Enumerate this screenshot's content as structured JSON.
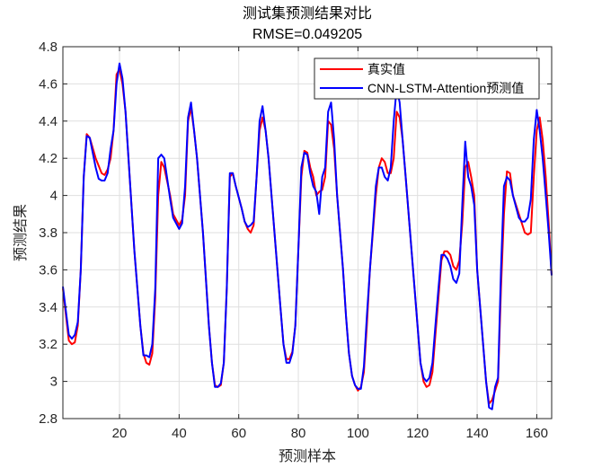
{
  "chart_data": {
    "type": "line",
    "title": "测试集预测结果对比",
    "subtitle": "RMSE=0.049205",
    "xlabel": "预测样本",
    "ylabel": "预测结果",
    "xlim": [
      1,
      165
    ],
    "ylim": [
      2.8,
      4.8
    ],
    "xticks": [
      20,
      40,
      60,
      80,
      100,
      120,
      140,
      160
    ],
    "yticks": [
      2.8,
      3,
      3.2,
      3.4,
      3.6,
      3.8,
      4,
      4.2,
      4.4,
      4.6,
      4.8
    ],
    "ytick_labels": [
      "2.8",
      "3",
      "3.2",
      "3.4",
      "3.6",
      "3.8",
      "4",
      "4.2",
      "4.4",
      "4.6",
      "4.8"
    ],
    "grid": true,
    "legend_position": "top-right",
    "series": [
      {
        "name": "真实值",
        "color": "#ff0000",
        "points": [
          [
            1,
            3.5
          ],
          [
            3,
            3.22
          ],
          [
            4,
            3.2
          ],
          [
            5,
            3.21
          ],
          [
            6,
            3.3
          ],
          [
            7,
            3.6
          ],
          [
            8,
            4.1
          ],
          [
            9,
            4.33
          ],
          [
            10,
            4.31
          ],
          [
            12,
            4.2
          ],
          [
            14,
            4.12
          ],
          [
            15,
            4.11
          ],
          [
            16,
            4.14
          ],
          [
            17,
            4.2
          ],
          [
            18,
            4.35
          ],
          [
            19,
            4.65
          ],
          [
            20,
            4.68
          ],
          [
            21,
            4.6
          ],
          [
            22,
            4.45
          ],
          [
            23,
            4.2
          ],
          [
            25,
            3.7
          ],
          [
            27,
            3.3
          ],
          [
            28,
            3.15
          ],
          [
            29,
            3.1
          ],
          [
            30,
            3.09
          ],
          [
            31,
            3.15
          ],
          [
            32,
            3.45
          ],
          [
            33,
            4.0
          ],
          [
            34,
            4.18
          ],
          [
            35,
            4.15
          ],
          [
            37,
            4.0
          ],
          [
            38,
            3.9
          ],
          [
            40,
            3.84
          ],
          [
            41,
            3.87
          ],
          [
            42,
            4.0
          ],
          [
            43,
            4.4
          ],
          [
            44,
            4.47
          ],
          [
            45,
            4.35
          ],
          [
            46,
            4.2
          ],
          [
            48,
            3.8
          ],
          [
            50,
            3.3
          ],
          [
            51,
            3.1
          ],
          [
            52,
            2.98
          ],
          [
            53,
            2.97
          ],
          [
            54,
            2.98
          ],
          [
            55,
            3.1
          ],
          [
            56,
            3.5
          ],
          [
            57,
            4.1
          ],
          [
            58,
            4.12
          ],
          [
            59,
            4.05
          ],
          [
            61,
            3.93
          ],
          [
            62,
            3.86
          ],
          [
            63,
            3.82
          ],
          [
            64,
            3.8
          ],
          [
            65,
            3.84
          ],
          [
            66,
            4.1
          ],
          [
            67,
            4.35
          ],
          [
            68,
            4.42
          ],
          [
            69,
            4.35
          ],
          [
            70,
            4.2
          ],
          [
            72,
            3.8
          ],
          [
            74,
            3.4
          ],
          [
            75,
            3.2
          ],
          [
            76,
            3.12
          ],
          [
            77,
            3.12
          ],
          [
            78,
            3.16
          ],
          [
            79,
            3.3
          ],
          [
            80,
            3.7
          ],
          [
            81,
            4.1
          ],
          [
            82,
            4.24
          ],
          [
            83,
            4.23
          ],
          [
            84,
            4.15
          ],
          [
            85,
            4.1
          ],
          [
            86,
            4.0
          ],
          [
            87,
            4.02
          ],
          [
            88,
            4.03
          ],
          [
            89,
            4.1
          ],
          [
            90,
            4.4
          ],
          [
            91,
            4.38
          ],
          [
            92,
            4.25
          ],
          [
            93,
            4.0
          ],
          [
            95,
            3.6
          ],
          [
            96,
            3.35
          ],
          [
            97,
            3.15
          ],
          [
            98,
            3.03
          ],
          [
            99,
            2.98
          ],
          [
            100,
            2.95
          ],
          [
            101,
            2.97
          ],
          [
            102,
            3.05
          ],
          [
            103,
            3.3
          ],
          [
            104,
            3.6
          ],
          [
            105,
            3.8
          ],
          [
            106,
            4.0
          ],
          [
            107,
            4.15
          ],
          [
            108,
            4.2
          ],
          [
            109,
            4.18
          ],
          [
            110,
            4.12
          ],
          [
            111,
            4.12
          ],
          [
            112,
            4.2
          ],
          [
            113,
            4.45
          ],
          [
            114,
            4.42
          ],
          [
            115,
            4.3
          ],
          [
            116,
            4.1
          ],
          [
            118,
            3.7
          ],
          [
            120,
            3.3
          ],
          [
            121,
            3.1
          ],
          [
            122,
            3.0
          ],
          [
            123,
            2.97
          ],
          [
            124,
            2.98
          ],
          [
            125,
            3.05
          ],
          [
            126,
            3.25
          ],
          [
            127,
            3.45
          ],
          [
            128,
            3.65
          ],
          [
            129,
            3.7
          ],
          [
            130,
            3.7
          ],
          [
            131,
            3.68
          ],
          [
            132,
            3.62
          ],
          [
            133,
            3.6
          ],
          [
            134,
            3.65
          ],
          [
            135,
            3.85
          ],
          [
            136,
            4.15
          ],
          [
            137,
            4.18
          ],
          [
            138,
            4.1
          ],
          [
            139,
            4.0
          ],
          [
            140,
            3.6
          ],
          [
            142,
            3.2
          ],
          [
            143,
            3.0
          ],
          [
            144,
            2.88
          ],
          [
            145,
            2.9
          ],
          [
            146,
            2.95
          ],
          [
            147,
            3.0
          ],
          [
            148,
            3.5
          ],
          [
            149,
            3.9
          ],
          [
            150,
            4.13
          ],
          [
            151,
            4.12
          ],
          [
            152,
            4.0
          ],
          [
            154,
            3.9
          ],
          [
            155,
            3.85
          ],
          [
            156,
            3.8
          ],
          [
            157,
            3.79
          ],
          [
            158,
            3.8
          ],
          [
            159,
            4.1
          ],
          [
            160,
            4.35
          ],
          [
            161,
            4.42
          ],
          [
            162,
            4.3
          ],
          [
            163,
            4.1
          ],
          [
            164,
            3.85
          ],
          [
            165,
            3.57
          ]
        ]
      },
      {
        "name": "CNN-LSTM-Attention预测值",
        "color": "#0000ff",
        "points": [
          [
            1,
            3.51
          ],
          [
            3,
            3.25
          ],
          [
            4,
            3.23
          ],
          [
            5,
            3.25
          ],
          [
            6,
            3.32
          ],
          [
            7,
            3.6
          ],
          [
            8,
            4.1
          ],
          [
            9,
            4.32
          ],
          [
            10,
            4.31
          ],
          [
            12,
            4.15
          ],
          [
            13,
            4.09
          ],
          [
            14,
            4.08
          ],
          [
            15,
            4.08
          ],
          [
            16,
            4.12
          ],
          [
            17,
            4.25
          ],
          [
            18,
            4.35
          ],
          [
            19,
            4.6
          ],
          [
            20,
            4.71
          ],
          [
            21,
            4.63
          ],
          [
            22,
            4.45
          ],
          [
            23,
            4.2
          ],
          [
            25,
            3.7
          ],
          [
            27,
            3.3
          ],
          [
            28,
            3.14
          ],
          [
            29,
            3.14
          ],
          [
            30,
            3.13
          ],
          [
            31,
            3.2
          ],
          [
            32,
            3.5
          ],
          [
            33,
            4.2
          ],
          [
            34,
            4.22
          ],
          [
            35,
            4.2
          ],
          [
            37,
            3.98
          ],
          [
            38,
            3.88
          ],
          [
            40,
            3.82
          ],
          [
            41,
            3.85
          ],
          [
            42,
            4.05
          ],
          [
            43,
            4.42
          ],
          [
            44,
            4.5
          ],
          [
            45,
            4.35
          ],
          [
            46,
            4.2
          ],
          [
            48,
            3.8
          ],
          [
            50,
            3.3
          ],
          [
            51,
            3.1
          ],
          [
            52,
            2.97
          ],
          [
            53,
            2.97
          ],
          [
            54,
            2.99
          ],
          [
            55,
            3.1
          ],
          [
            56,
            3.5
          ],
          [
            57,
            4.12
          ],
          [
            58,
            4.12
          ],
          [
            59,
            4.05
          ],
          [
            61,
            3.93
          ],
          [
            62,
            3.86
          ],
          [
            63,
            3.83
          ],
          [
            64,
            3.84
          ],
          [
            65,
            3.86
          ],
          [
            66,
            4.1
          ],
          [
            67,
            4.4
          ],
          [
            68,
            4.48
          ],
          [
            69,
            4.35
          ],
          [
            70,
            4.2
          ],
          [
            72,
            3.8
          ],
          [
            74,
            3.4
          ],
          [
            75,
            3.2
          ],
          [
            76,
            3.1
          ],
          [
            77,
            3.1
          ],
          [
            78,
            3.15
          ],
          [
            79,
            3.3
          ],
          [
            80,
            3.7
          ],
          [
            81,
            4.15
          ],
          [
            82,
            4.23
          ],
          [
            83,
            4.22
          ],
          [
            84,
            4.12
          ],
          [
            85,
            4.05
          ],
          [
            86,
            4.02
          ],
          [
            87,
            3.9
          ],
          [
            88,
            4.1
          ],
          [
            89,
            4.15
          ],
          [
            90,
            4.45
          ],
          [
            91,
            4.5
          ],
          [
            92,
            4.3
          ],
          [
            93,
            4.0
          ],
          [
            95,
            3.6
          ],
          [
            96,
            3.35
          ],
          [
            97,
            3.15
          ],
          [
            98,
            3.03
          ],
          [
            99,
            2.98
          ],
          [
            100,
            2.96
          ],
          [
            101,
            2.96
          ],
          [
            102,
            3.08
          ],
          [
            103,
            3.35
          ],
          [
            104,
            3.6
          ],
          [
            105,
            3.82
          ],
          [
            106,
            4.05
          ],
          [
            107,
            4.15
          ],
          [
            108,
            4.15
          ],
          [
            109,
            4.1
          ],
          [
            110,
            4.08
          ],
          [
            111,
            4.15
          ],
          [
            112,
            4.4
          ],
          [
            113,
            4.58
          ],
          [
            114,
            4.5
          ],
          [
            115,
            4.3
          ],
          [
            116,
            4.1
          ],
          [
            118,
            3.7
          ],
          [
            120,
            3.3
          ],
          [
            121,
            3.1
          ],
          [
            122,
            3.02
          ],
          [
            123,
            3.0
          ],
          [
            124,
            3.02
          ],
          [
            125,
            3.1
          ],
          [
            126,
            3.3
          ],
          [
            127,
            3.5
          ],
          [
            128,
            3.68
          ],
          [
            129,
            3.68
          ],
          [
            130,
            3.66
          ],
          [
            131,
            3.62
          ],
          [
            132,
            3.55
          ],
          [
            133,
            3.53
          ],
          [
            134,
            3.58
          ],
          [
            135,
            3.95
          ],
          [
            136,
            4.29
          ],
          [
            137,
            4.1
          ],
          [
            138,
            4.05
          ],
          [
            139,
            3.95
          ],
          [
            140,
            3.6
          ],
          [
            142,
            3.2
          ],
          [
            143,
            3.0
          ],
          [
            144,
            2.86
          ],
          [
            145,
            2.85
          ],
          [
            146,
            2.97
          ],
          [
            147,
            3.02
          ],
          [
            148,
            3.6
          ],
          [
            149,
            4.05
          ],
          [
            150,
            4.1
          ],
          [
            151,
            4.08
          ],
          [
            152,
            4.0
          ],
          [
            154,
            3.88
          ],
          [
            155,
            3.86
          ],
          [
            156,
            3.86
          ],
          [
            157,
            3.88
          ],
          [
            158,
            3.98
          ],
          [
            159,
            4.3
          ],
          [
            160,
            4.46
          ],
          [
            161,
            4.35
          ],
          [
            162,
            4.2
          ],
          [
            163,
            4.0
          ],
          [
            164,
            3.8
          ],
          [
            165,
            3.57
          ]
        ]
      }
    ]
  }
}
